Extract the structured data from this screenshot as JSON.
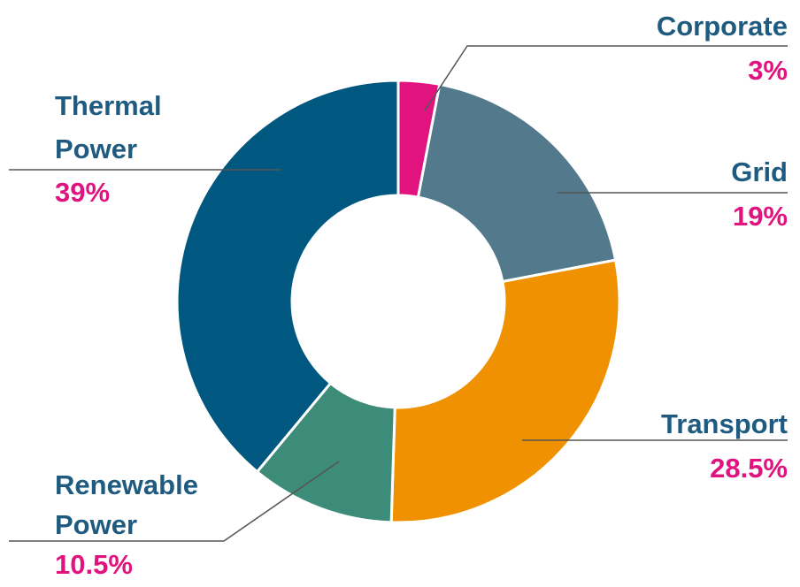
{
  "chart_data": {
    "type": "donut",
    "categories": [
      "Corporate",
      "Grid",
      "Transport",
      "Renewable Power",
      "Thermal Power"
    ],
    "values": [
      3,
      19,
      28.5,
      10.5,
      39
    ],
    "value_labels": [
      "3%",
      "19%",
      "28.5%",
      "10.5%",
      "39%"
    ],
    "colors": [
      "#e0137f",
      "#527a8c",
      "#ef9100",
      "#3d8b79",
      "#00577f"
    ]
  }
}
